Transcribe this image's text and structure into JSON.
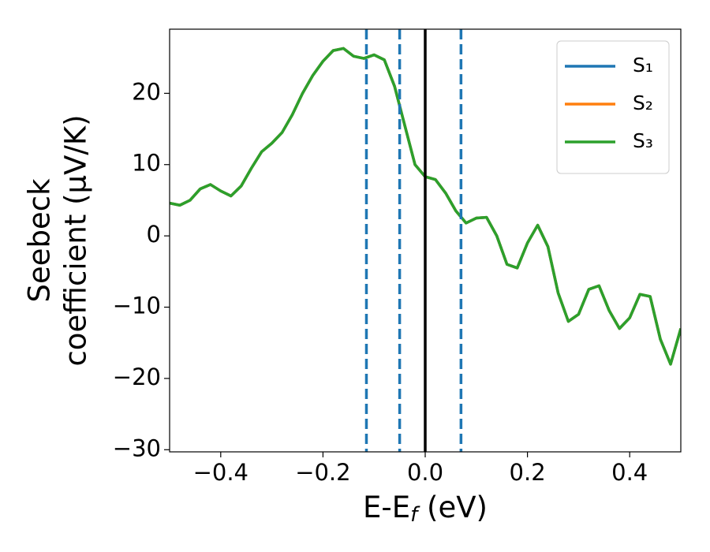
{
  "chart_data": {
    "type": "line",
    "xlabel": [
      "E-E",
      "f",
      " (eV)"
    ],
    "ylabel": [
      "Seebeck",
      "coefficient  (μV/K)"
    ],
    "x": [
      -0.5,
      -0.48,
      -0.46,
      -0.44,
      -0.42,
      -0.4,
      -0.38,
      -0.36,
      -0.34,
      -0.32,
      -0.3,
      -0.28,
      -0.26,
      -0.24,
      -0.22,
      -0.2,
      -0.18,
      -0.16,
      -0.14,
      -0.12,
      -0.1,
      -0.08,
      -0.06,
      -0.04,
      -0.02,
      0.0,
      0.02,
      0.04,
      0.06,
      0.08,
      0.1,
      0.12,
      0.14,
      0.16,
      0.18,
      0.2,
      0.22,
      0.24,
      0.26,
      0.28,
      0.3,
      0.32,
      0.34,
      0.36,
      0.38,
      0.4,
      0.42,
      0.44,
      0.46,
      0.48,
      0.5
    ],
    "series": [
      {
        "name": "S₁",
        "color": "#1f77b4",
        "values": [
          4.6,
          4.3,
          5.0,
          6.6,
          7.2,
          6.3,
          5.6,
          7.0,
          9.5,
          11.8,
          13.0,
          14.5,
          17.0,
          20.0,
          22.5,
          24.5,
          26.0,
          26.3,
          25.2,
          24.9,
          25.4,
          24.7,
          21.0,
          15.5,
          10.0,
          8.3,
          7.9,
          6.0,
          3.5,
          1.8,
          2.5,
          2.6,
          0.0,
          -4.0,
          -4.5,
          -1.0,
          1.5,
          -1.5,
          -8.0,
          -12.0,
          -11.0,
          -7.5,
          -7.0,
          -10.5,
          -13.0,
          -11.5,
          -8.2,
          -8.5,
          -14.5,
          -18.0,
          -13.0
        ]
      },
      {
        "name": "S₂",
        "color": "#ff7f0e",
        "values": [
          4.6,
          4.3,
          5.0,
          6.6,
          7.2,
          6.3,
          5.6,
          7.0,
          9.5,
          11.8,
          13.0,
          14.5,
          17.0,
          20.0,
          22.5,
          24.5,
          26.0,
          26.3,
          25.2,
          24.9,
          25.4,
          24.7,
          21.0,
          15.5,
          10.0,
          8.3,
          7.9,
          6.0,
          3.5,
          1.8,
          2.5,
          2.6,
          0.0,
          -4.0,
          -4.5,
          -1.0,
          1.5,
          -1.5,
          -8.0,
          -12.0,
          -11.0,
          -7.5,
          -7.0,
          -10.5,
          -13.0,
          -11.5,
          -8.2,
          -8.5,
          -14.5,
          -18.0,
          -13.0
        ]
      },
      {
        "name": "S₃",
        "color": "#2ca02c",
        "values": [
          4.6,
          4.3,
          5.0,
          6.6,
          7.2,
          6.3,
          5.6,
          7.0,
          9.5,
          11.8,
          13.0,
          14.5,
          17.0,
          20.0,
          22.5,
          24.5,
          26.0,
          26.3,
          25.2,
          24.9,
          25.4,
          24.7,
          21.0,
          15.5,
          10.0,
          8.3,
          7.9,
          6.0,
          3.5,
          1.8,
          2.5,
          2.6,
          0.0,
          -4.0,
          -4.5,
          -1.0,
          1.5,
          -1.5,
          -8.0,
          -12.0,
          -11.0,
          -7.5,
          -7.0,
          -10.5,
          -13.0,
          -11.5,
          -8.2,
          -8.5,
          -14.5,
          -18.0,
          -13.0
        ]
      }
    ],
    "vlines": [
      {
        "x": -0.115,
        "color": "#1f77b4",
        "style": "dashed"
      },
      {
        "x": -0.05,
        "color": "#1f77b4",
        "style": "dashed"
      },
      {
        "x": 0,
        "color": "#000000",
        "style": "solid"
      },
      {
        "x": 0.07,
        "color": "#1f77b4",
        "style": "dashed"
      }
    ],
    "xlim": [
      -0.5,
      0.5
    ],
    "ylim": [
      -30.3,
      29
    ],
    "xticks": [
      {
        "value": -0.4,
        "label": "−0.4"
      },
      {
        "value": -0.2,
        "label": "−0.2"
      },
      {
        "value": 0,
        "label": "0.0"
      },
      0.2,
      0.4
    ],
    "yticks": [
      {
        "value": -30,
        "label": "−30"
      },
      {
        "value": -20,
        "label": "−20"
      },
      {
        "value": -10,
        "label": "−10"
      },
      0,
      10,
      20
    ],
    "grid": false,
    "legend": "upper right"
  }
}
